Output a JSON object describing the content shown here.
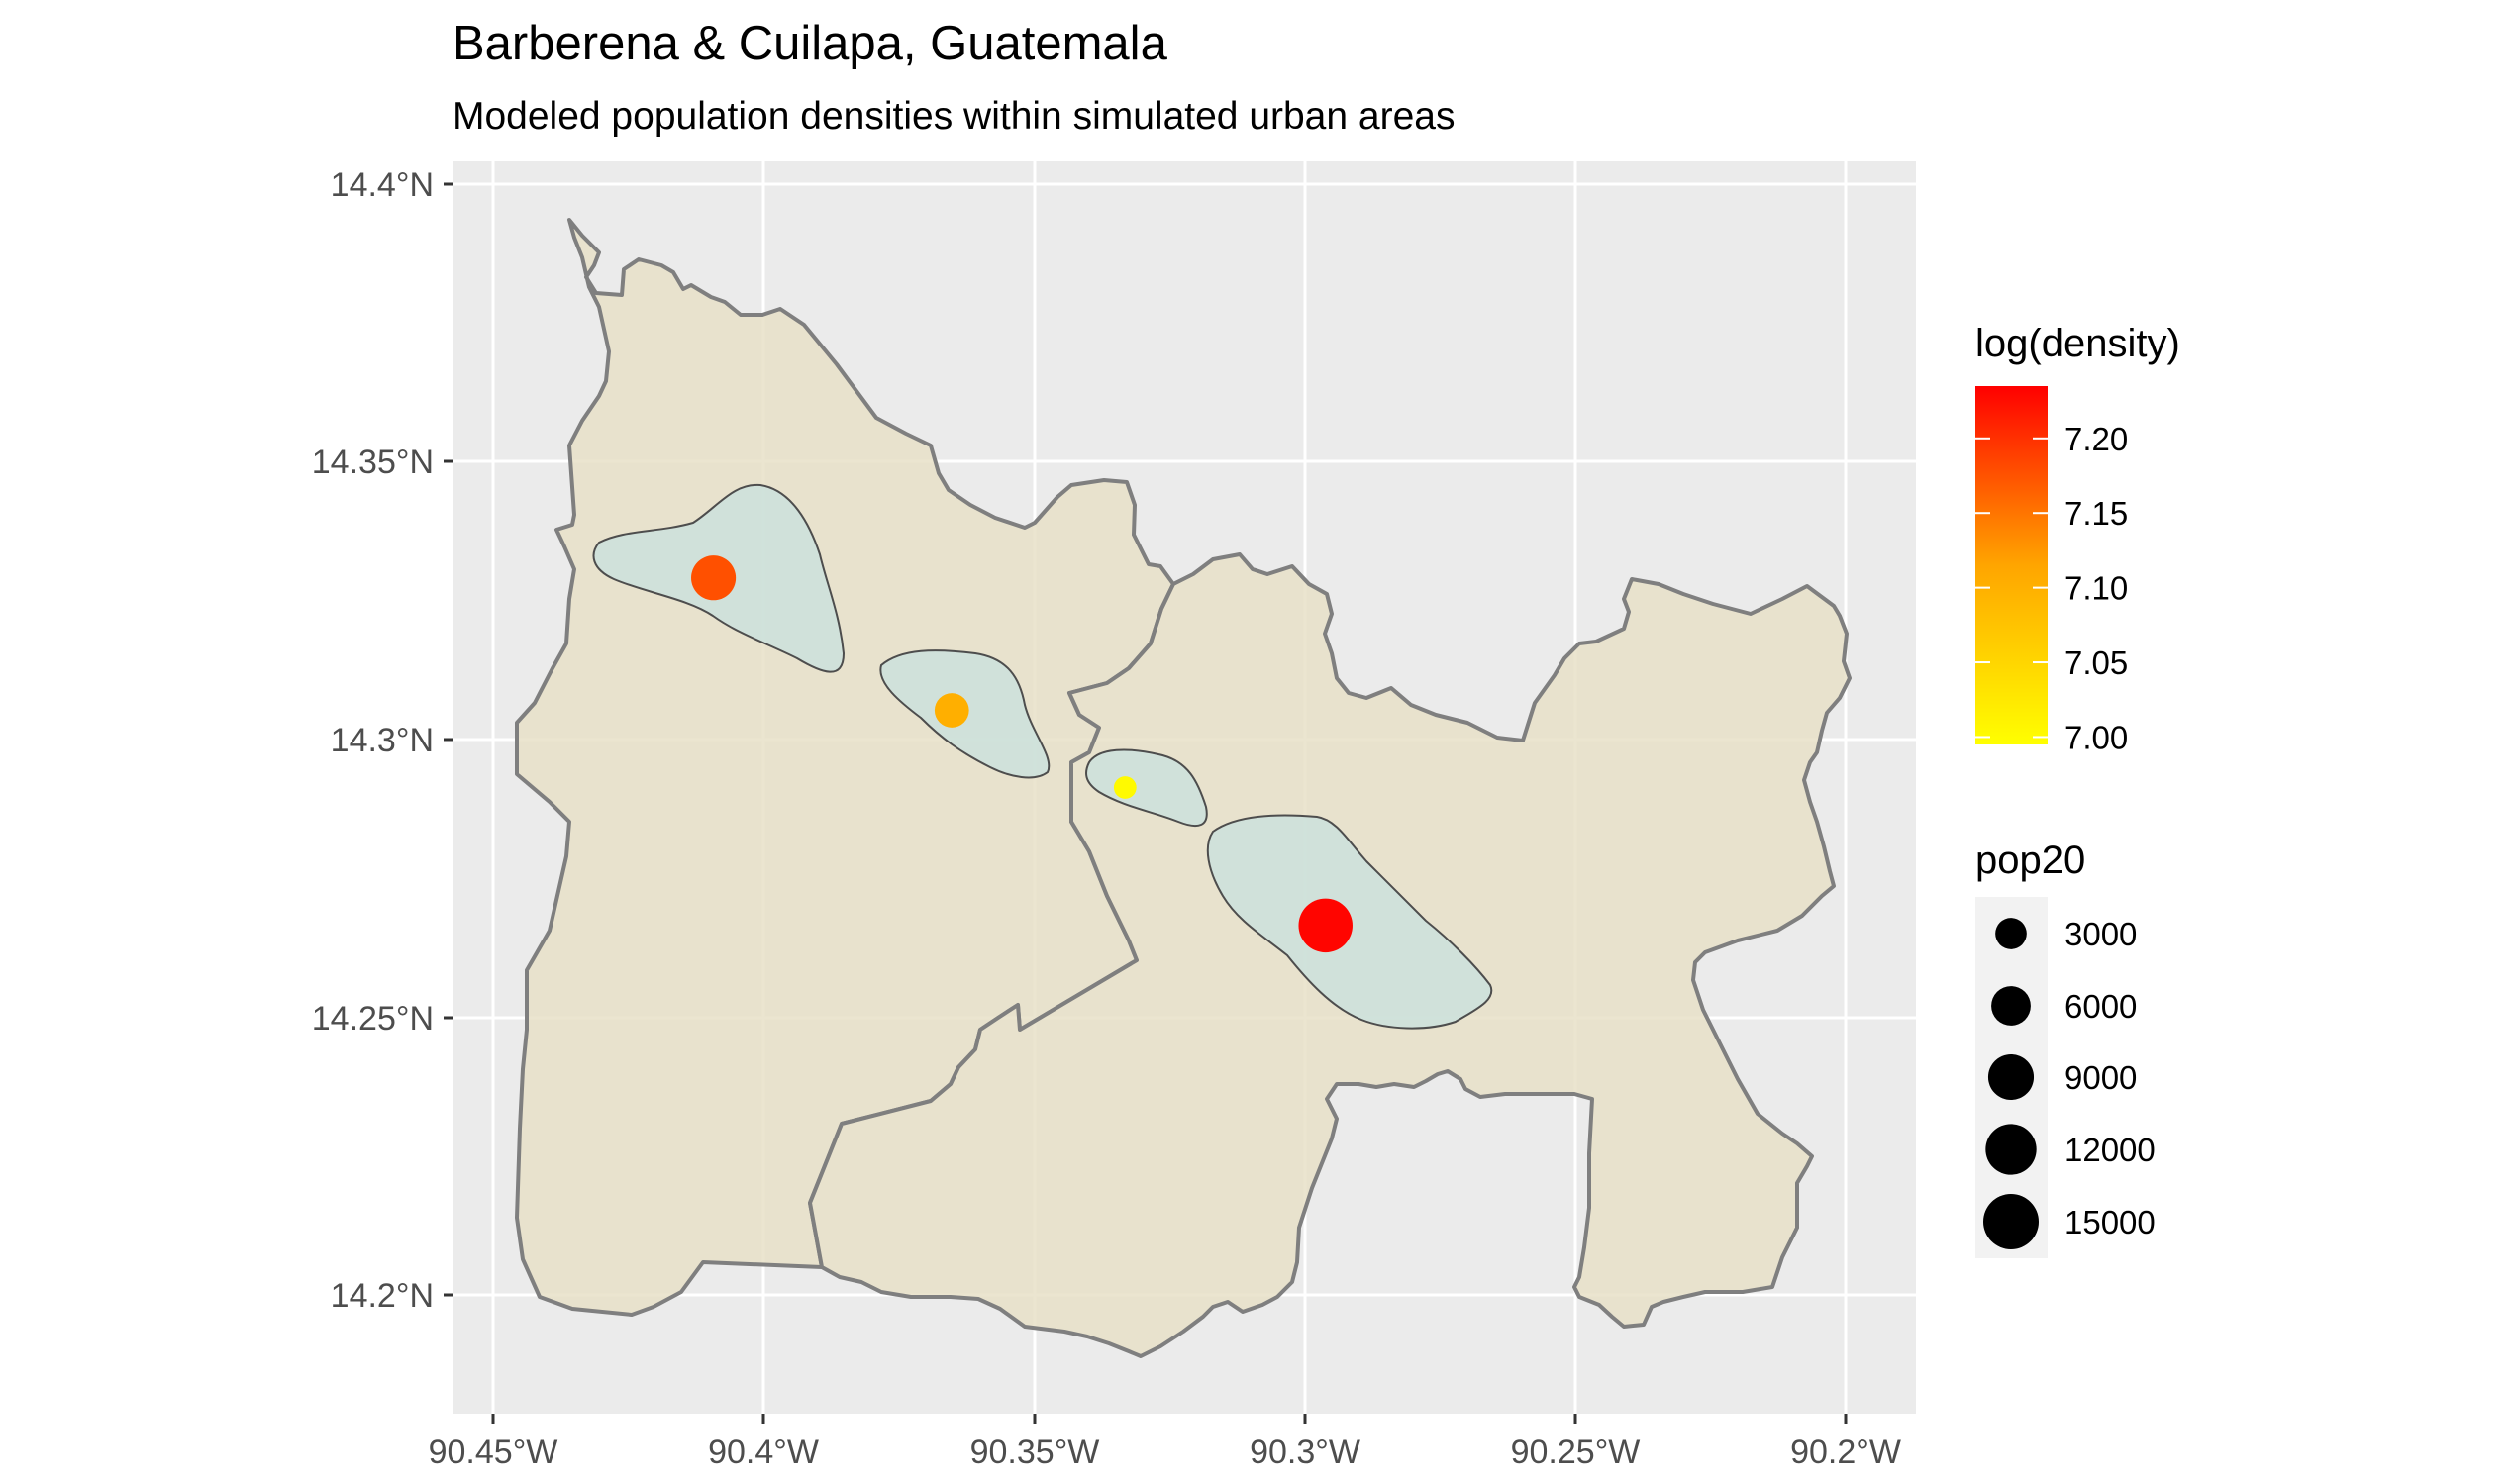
{
  "title": "Barberena & Cuilapa, Guatemala",
  "subtitle": "Modeled population densities within simulated urban areas",
  "axes": {
    "x_ticks": [
      "90.45°W",
      "90.4°W",
      "90.35°W",
      "90.3°W",
      "90.25°W",
      "90.2°W"
    ],
    "y_ticks": [
      "14.4°N",
      "14.35°N",
      "14.3°N",
      "14.25°N",
      "14.2°N"
    ],
    "x_range": [
      -90.4525,
      -90.1825
    ],
    "y_range": [
      14.178,
      14.405
    ],
    "grid": true
  },
  "colors": {
    "panel_background": "#ebebeb",
    "grid": "#ffffff",
    "municipality_fill": "#e8e1c8",
    "municipality_border": "#7f7f7f",
    "urban_area_fill": "#cde1dc",
    "urban_area_border": "#4d4d4d"
  },
  "legend": {
    "color": {
      "title": "log(density)",
      "labels": [
        "7.20",
        "7.15",
        "7.10",
        "7.05",
        "7.00"
      ],
      "range": [
        6.995,
        7.235
      ],
      "gradient": [
        "#ffff00",
        "#ff0000"
      ]
    },
    "size": {
      "title": "pop20",
      "labels": [
        "3000",
        "6000",
        "9000",
        "12000",
        "15000"
      ],
      "values": [
        3000,
        6000,
        9000,
        12000,
        15000
      ]
    }
  },
  "chart_data": {
    "type": "scatter",
    "points": [
      {
        "lon": -90.4045,
        "lat": 14.3295,
        "log_density": 7.16,
        "pop20": 8500
      },
      {
        "lon": -90.3605,
        "lat": 14.3055,
        "log_density": 7.07,
        "pop20": 4000
      },
      {
        "lon": -90.3285,
        "lat": 14.2915,
        "log_density": 7.0,
        "pop20": 900
      },
      {
        "lon": -90.2915,
        "lat": 14.2665,
        "log_density": 7.23,
        "pop20": 14000
      }
    ]
  }
}
